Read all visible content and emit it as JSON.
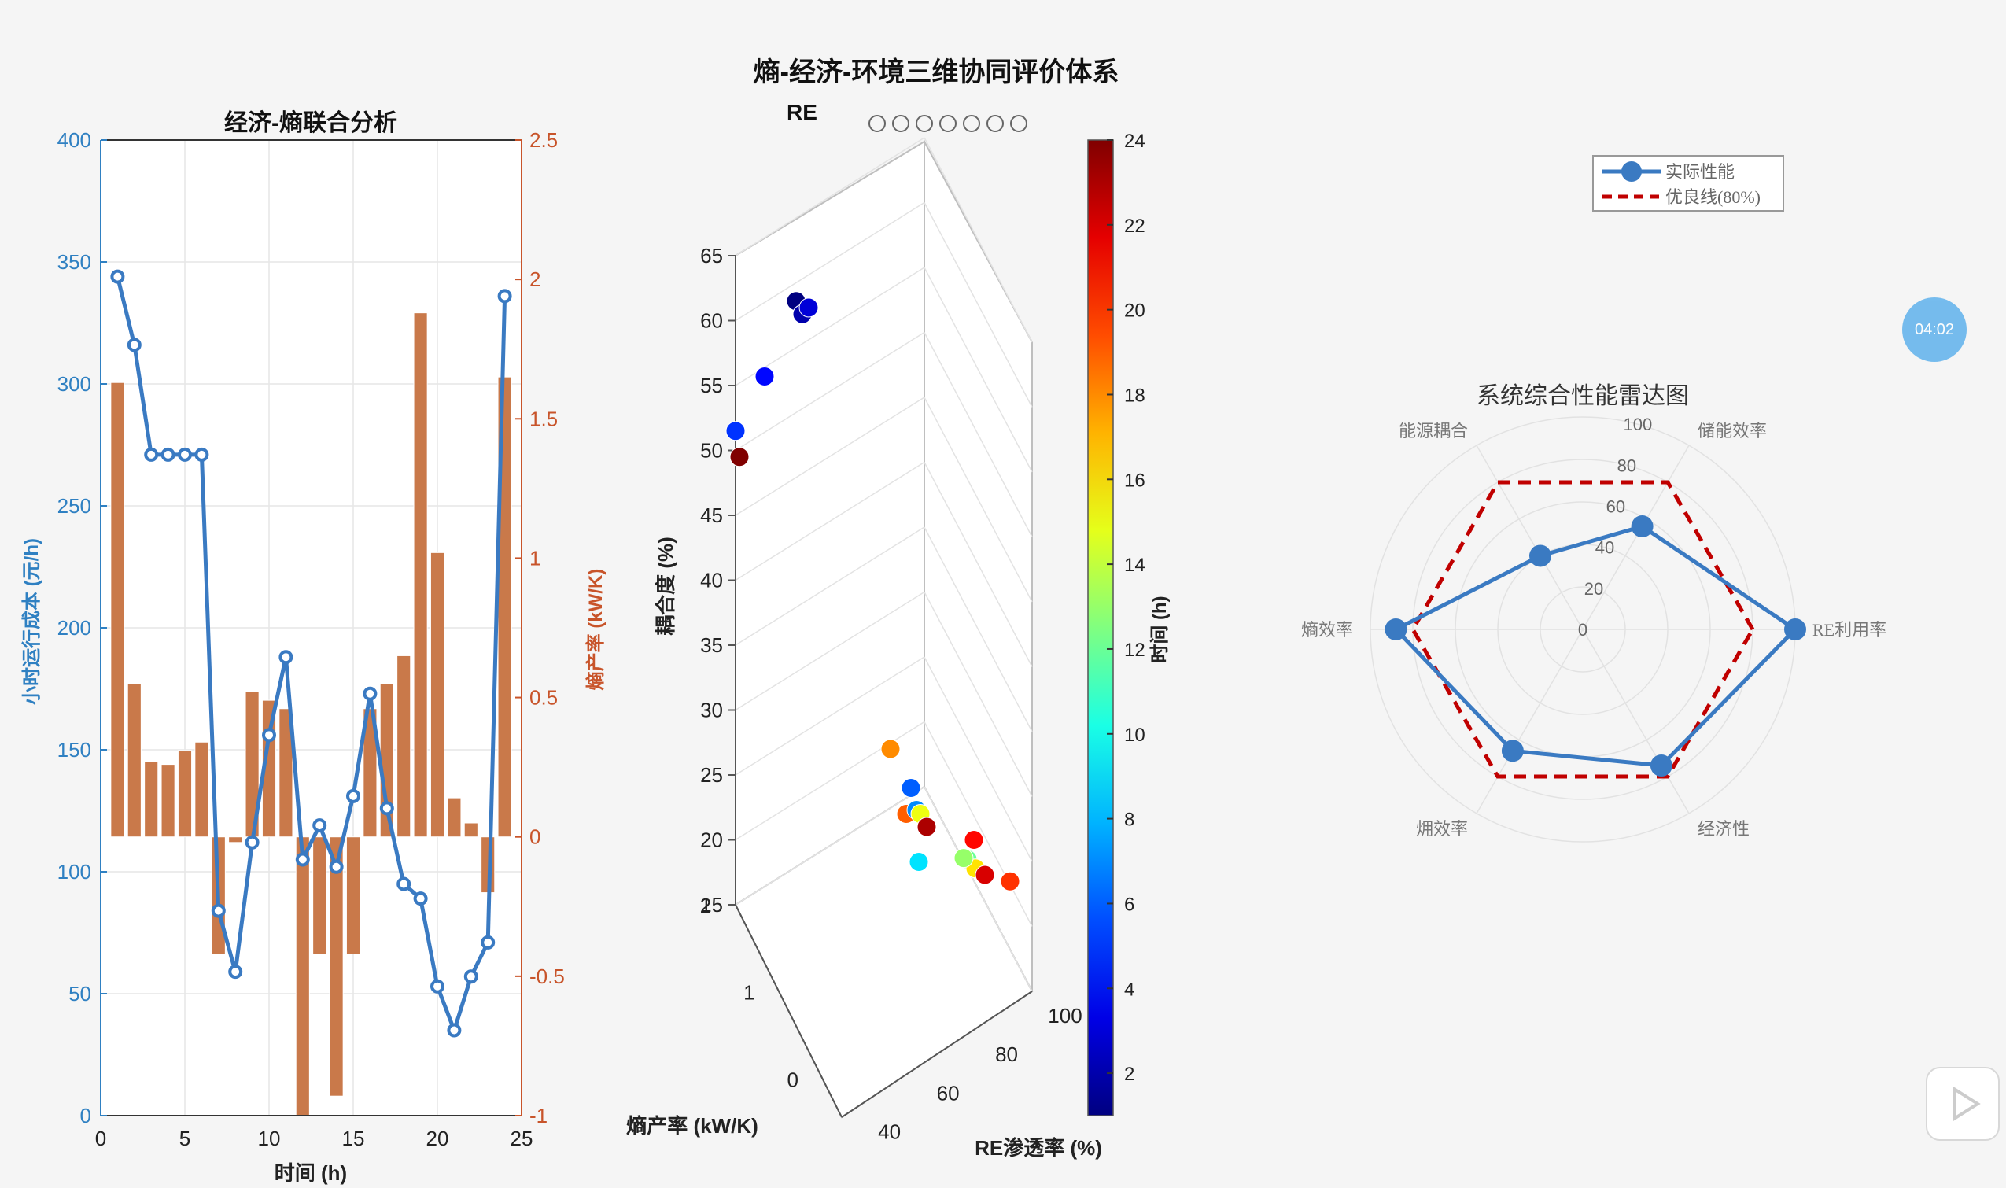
{
  "figure_title": "熵-经济-环境三维协同评价体系",
  "colors": {
    "line_blue": "#3a7ac2",
    "bar_orange": "#c9794a",
    "left_axis": "#2f80c2",
    "right_axis": "#c8542a",
    "target_red": "#c00000",
    "radar_blue": "#3a7ac2"
  },
  "ui": {
    "timer": "04:02",
    "toolbar_icons": [
      "zoom-out-icon",
      "zoom-in-icon",
      "pan-icon",
      "rotate-icon",
      "data-tip-icon",
      "brush-icon",
      "home-icon"
    ],
    "partial_toolbar_text": "RE"
  },
  "chart_data": [
    {
      "type": "bar+line",
      "title": "经济-熵联合分析",
      "xlabel": "时间 (h)",
      "ylabel_left": "小时运行成本 (元/h)",
      "ylabel_right": "熵产率 (kW/K)",
      "xlim": [
        0,
        25
      ],
      "ylim_left": [
        0,
        400
      ],
      "ylim_right": [
        -1,
        2.5
      ],
      "xticks": [
        "0",
        "5",
        "10",
        "15",
        "20",
        "25"
      ],
      "yticks_left": [
        "0",
        "50",
        "100",
        "150",
        "200",
        "250",
        "300",
        "350",
        "400"
      ],
      "yticks_right": [
        "-1",
        "-0.5",
        "0",
        "0.5",
        "1",
        "1.5",
        "2",
        "2.5"
      ],
      "x": [
        1,
        2,
        3,
        4,
        5,
        6,
        7,
        8,
        9,
        10,
        11,
        12,
        13,
        14,
        15,
        16,
        17,
        18,
        19,
        20,
        21,
        22,
        23,
        24
      ],
      "series": [
        {
          "axis": "right",
          "values": [
            1.63,
            0.55,
            0.27,
            0.26,
            0.31,
            0.34,
            -0.42,
            -0.02,
            0.52,
            0.49,
            0.46,
            -1.0,
            -0.42,
            -0.93,
            -0.42,
            0.46,
            0.55,
            0.65,
            1.88,
            1.02,
            0.14,
            0.05,
            -0.2,
            1.65
          ]
        },
        {
          "axis": "left",
          "values": [
            344,
            316,
            271,
            271,
            271,
            271,
            84,
            59,
            112,
            156,
            188,
            105,
            119,
            102,
            131,
            173,
            126,
            95,
            89,
            53,
            35,
            57,
            71,
            336
          ]
        }
      ]
    },
    {
      "type": "scatter3d",
      "zlabel": "耦合度 (%)",
      "ylabel": "熵产率 (kW/K)",
      "xlabel": "RE渗透率 (%)",
      "zticks": [
        "15",
        "20",
        "25",
        "30",
        "35",
        "40",
        "45",
        "50",
        "55",
        "60",
        "65"
      ],
      "yticks": [
        "0",
        "1",
        "2"
      ],
      "xticks": [
        "40",
        "60",
        "80",
        "100"
      ],
      "colorbar_label": "时间 (h)",
      "colorbar_ticks": [
        "2",
        "4",
        "6",
        "8",
        "10",
        "12",
        "14",
        "16",
        "18",
        "20",
        "22",
        "24"
      ],
      "clim": [
        1,
        24
      ],
      "points": [
        {
          "t": 1,
          "coupling": 61.5
        },
        {
          "t": 2,
          "coupling": 60.5
        },
        {
          "t": 3,
          "coupling": 61
        },
        {
          "t": 4,
          "coupling": 55.7
        },
        {
          "t": 5,
          "coupling": 51.5
        },
        {
          "t": 24,
          "coupling": 49.5
        },
        {
          "t": 18,
          "coupling": 27
        },
        {
          "t": 19,
          "coupling": 22
        },
        {
          "t": 6,
          "coupling": 24
        },
        {
          "t": 7,
          "coupling": 22.3
        },
        {
          "t": 15,
          "coupling": 22
        },
        {
          "t": 23,
          "coupling": 21
        },
        {
          "t": 21,
          "coupling": 20
        },
        {
          "t": 12,
          "coupling": 18.5
        },
        {
          "t": 9,
          "coupling": 18.3
        },
        {
          "t": 16,
          "coupling": 17.8
        },
        {
          "t": 22,
          "coupling": 17.3
        },
        {
          "t": 20,
          "coupling": 16.8
        },
        {
          "t": 13,
          "coupling": 18.6
        }
      ]
    },
    {
      "type": "radar",
      "title": "系统综合性能雷达图",
      "rlim": [
        0,
        100
      ],
      "rticks": [
        "0",
        "20",
        "40",
        "60",
        "80",
        "100"
      ],
      "axes": [
        "RE利用率",
        "储能效率",
        "能源耦合",
        "熵效率",
        "㶲效率",
        "经济性"
      ],
      "series": [
        {
          "name": "实际性能",
          "values": [
            100,
            56,
            40,
            88,
            66,
            74
          ]
        },
        {
          "name": "优良线(80%)",
          "values": [
            80,
            80,
            80,
            80,
            80,
            80
          ]
        }
      ]
    }
  ]
}
